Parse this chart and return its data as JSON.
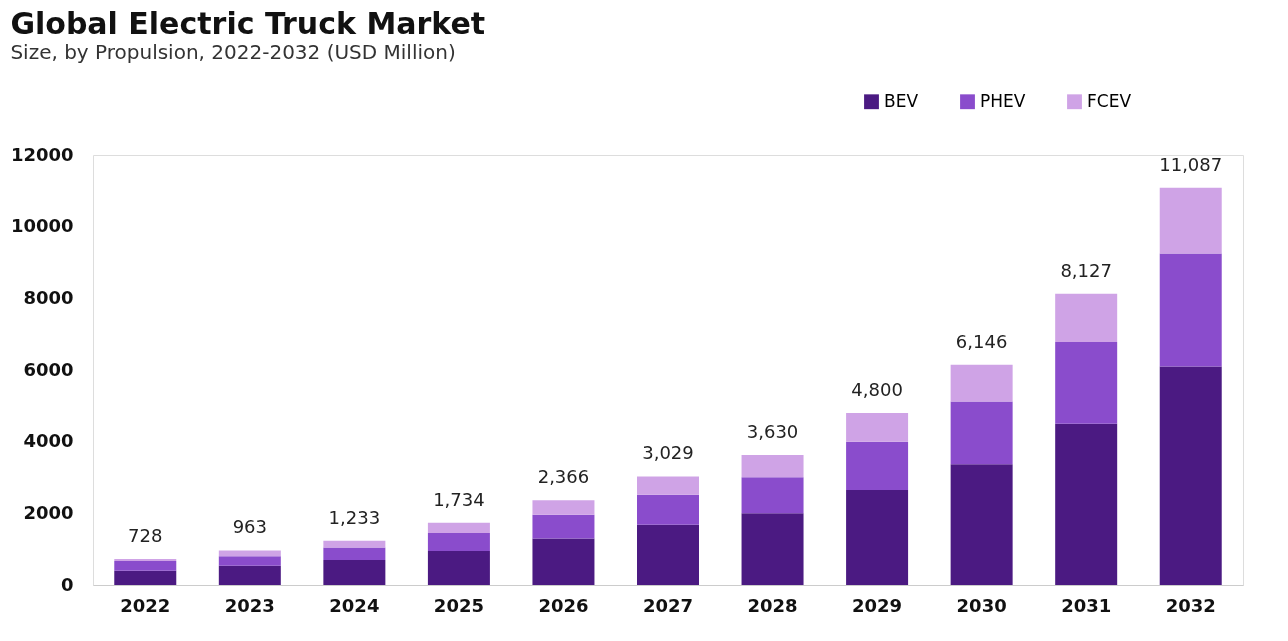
{
  "chart_data": {
    "type": "bar",
    "title": "Global Electric Truck Market",
    "subtitle": "Size, by Propulsion, 2022-2032 (USD Million)",
    "categories": [
      "2022",
      "2023",
      "2024",
      "2025",
      "2026",
      "2027",
      "2028",
      "2029",
      "2030",
      "2031",
      "2032"
    ],
    "stacked": true,
    "series": [
      {
        "name": "BEV",
        "color": "#4b1a82",
        "values": [
          400,
          540,
          700,
          950,
          1300,
          1680,
          2000,
          2650,
          3370,
          4500,
          6100
        ]
      },
      {
        "name": "PHEV",
        "color": "#8a4ccc",
        "values": [
          270,
          260,
          345,
          500,
          660,
          840,
          1010,
          1350,
          1750,
          2280,
          3150
        ]
      },
      {
        "name": "FCEV",
        "color": "#cfa3e6",
        "values": [
          58,
          163,
          188,
          284,
          406,
          509,
          620,
          800,
          1026,
          1347,
          1837
        ]
      }
    ],
    "totals": [
      "728",
      "963",
      "1,233",
      "1,734",
      "2,366",
      "3,029",
      "3,630",
      "4,800",
      "6,146",
      "8,127",
      "11,087"
    ],
    "ylim": [
      0,
      12000
    ],
    "yticks": [
      0,
      2000,
      4000,
      6000,
      8000,
      10000,
      12000
    ],
    "grid": false,
    "legend": "top right"
  }
}
